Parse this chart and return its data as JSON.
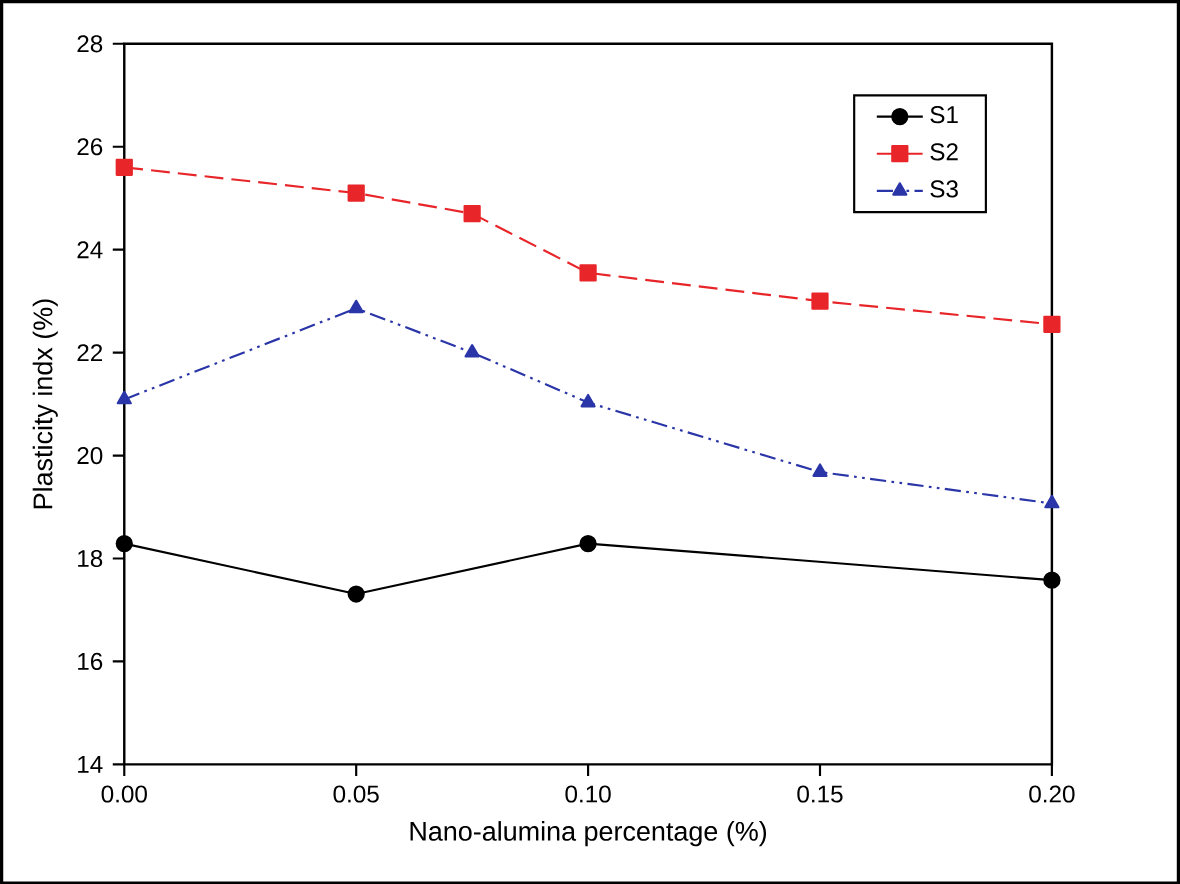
{
  "chart_data": {
    "type": "line",
    "xlabel": "Nano-alumina percentage (%)",
    "ylabel": "Plasticity indx (%)",
    "xlim": [
      0,
      0.2
    ],
    "xticks": [
      {
        "value": 0,
        "label": "0.00"
      },
      0.05,
      {
        "value": 0.1,
        "label": "0.10"
      },
      0.15,
      {
        "value": 0.2,
        "label": "0.20"
      }
    ],
    "ylim": [
      14,
      28
    ],
    "yticks": [
      14,
      16,
      18,
      20,
      22,
      24,
      26,
      28
    ],
    "grid": false,
    "legend": "top right",
    "series": [
      {
        "name": "S1",
        "color": "#000000",
        "marker": "circle",
        "line_style": "solid",
        "x": [
          0,
          0.05,
          0.1,
          0.2
        ],
        "values": [
          18.29,
          17.31,
          18.29,
          17.58
        ]
      },
      {
        "name": "S2",
        "color": "#e8262a",
        "marker": "square",
        "line_style": "dashed",
        "x": [
          0,
          0.05,
          0.075,
          0.1,
          0.15,
          0.2
        ],
        "values": [
          25.6,
          25.1,
          24.7,
          23.55,
          23.0,
          22.55
        ]
      },
      {
        "name": "S3",
        "color": "#2a35a8",
        "marker": "triangle",
        "line_style": "dashdotdotted",
        "x": [
          0,
          0.05,
          0.075,
          0.1,
          0.15,
          0.2
        ],
        "values": [
          21.09,
          22.86,
          22.0,
          21.03,
          19.68,
          19.07
        ]
      }
    ]
  }
}
